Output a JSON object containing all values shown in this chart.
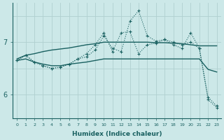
{
  "xlabel": "Humidex (Indice chaleur)",
  "x_values": [
    0,
    1,
    2,
    3,
    4,
    5,
    6,
    7,
    8,
    9,
    10,
    11,
    12,
    13,
    14,
    15,
    16,
    17,
    18,
    19,
    20,
    21,
    22,
    23
  ],
  "line_smooth_top": [
    6.68,
    6.75,
    6.78,
    6.82,
    6.85,
    6.87,
    6.89,
    6.92,
    6.95,
    6.97,
    7.0,
    7.0,
    7.0,
    7.0,
    7.0,
    7.0,
    6.99,
    6.99,
    6.98,
    6.97,
    6.95,
    6.93,
    6.93,
    6.93
  ],
  "line_smooth_bot": [
    6.65,
    6.68,
    6.62,
    6.58,
    6.55,
    6.55,
    6.58,
    6.6,
    6.62,
    6.65,
    6.68,
    6.68,
    6.68,
    6.68,
    6.68,
    6.68,
    6.68,
    6.68,
    6.68,
    6.68,
    6.68,
    6.68,
    6.48,
    6.43
  ],
  "line_marker1": [
    6.65,
    6.75,
    6.62,
    6.55,
    6.5,
    6.52,
    6.58,
    6.68,
    6.72,
    6.85,
    7.12,
    6.88,
    6.82,
    7.4,
    7.6,
    7.12,
    7.02,
    7.05,
    7.0,
    6.95,
    7.0,
    6.88,
    5.9,
    5.75
  ],
  "line_marker2": [
    6.65,
    6.75,
    6.62,
    6.55,
    6.5,
    6.52,
    6.58,
    6.68,
    6.78,
    6.95,
    7.18,
    6.82,
    7.18,
    7.2,
    6.78,
    6.95,
    6.98,
    7.05,
    6.95,
    6.88,
    7.18,
    6.88,
    5.95,
    5.78
  ],
  "ylim": [
    5.55,
    7.75
  ],
  "yticks": [
    6,
    7
  ],
  "bg_color": "#cce8e8",
  "line_color": "#196060",
  "grid_color": "#b0d0d0"
}
